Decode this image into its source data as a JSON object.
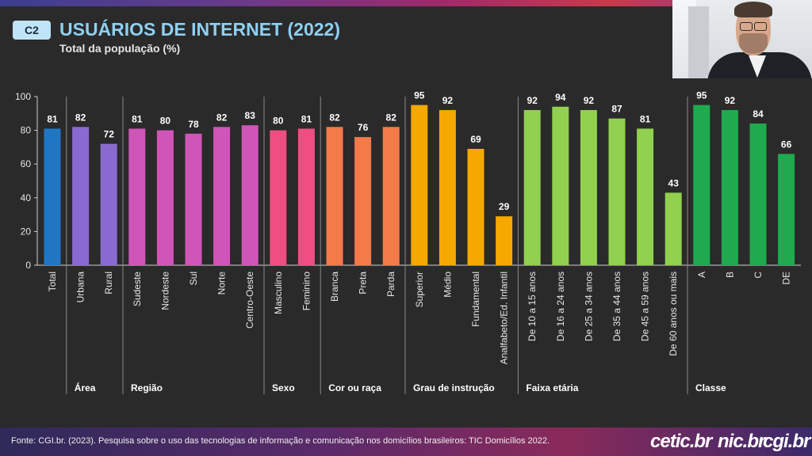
{
  "header": {
    "badge": "C2",
    "title": "USUÁRIOS DE INTERNET (2022)",
    "subtitle": "Total da população (%)"
  },
  "chart_data": {
    "type": "bar",
    "ylim": [
      0,
      100
    ],
    "yticks": [
      0,
      20,
      40,
      60,
      80,
      100
    ],
    "grid": false,
    "groups": [
      {
        "name": "",
        "color": "#1f77c4",
        "categories": [
          "Total"
        ],
        "values": [
          81
        ]
      },
      {
        "name": "Área",
        "color": "#8a6ad0",
        "categories": [
          "Urbana",
          "Rural"
        ],
        "values": [
          82,
          72
        ]
      },
      {
        "name": "Região",
        "color": "#d055b8",
        "categories": [
          "Sudeste",
          "Nordeste",
          "Sul",
          "Norte",
          "Centro-Oeste"
        ],
        "values": [
          81,
          80,
          78,
          82,
          83
        ]
      },
      {
        "name": "Sexo",
        "color": "#ee4f80",
        "categories": [
          "Masculino",
          "Feminino"
        ],
        "values": [
          80,
          81
        ]
      },
      {
        "name": "Cor ou raça",
        "color": "#f57a4a",
        "categories": [
          "Branca",
          "Preta",
          "Parda"
        ],
        "values": [
          82,
          76,
          82
        ]
      },
      {
        "name": "Grau de instrução",
        "color": "#f5a800",
        "categories": [
          "Superior",
          "Médio",
          "Fundamental",
          "Analfabeto/Ed. Infantil"
        ],
        "values": [
          95,
          92,
          69,
          29
        ]
      },
      {
        "name": "Faixa etária",
        "color": "#92d050",
        "categories": [
          "De 10 a 15 anos",
          "De 16 a 24 anos",
          "De 25 a 34 anos",
          "De 35 a 44 anos",
          "De 45 a 59 anos",
          "De 60 anos ou mais"
        ],
        "values": [
          92,
          94,
          92,
          87,
          81,
          43
        ]
      },
      {
        "name": "Classe",
        "color": "#1faa4f",
        "categories": [
          "A",
          "B",
          "C",
          "DE"
        ],
        "values": [
          95,
          92,
          84,
          66
        ]
      }
    ]
  },
  "footer": {
    "source": "Fonte: CGI.br. (2023). Pesquisa sobre o uso das tecnologias de informação e comunicação nos domicílios brasileiros: TIC Domicílios 2022.",
    "logos": [
      "cetic.br",
      "nic.br",
      "cgi.br"
    ]
  }
}
